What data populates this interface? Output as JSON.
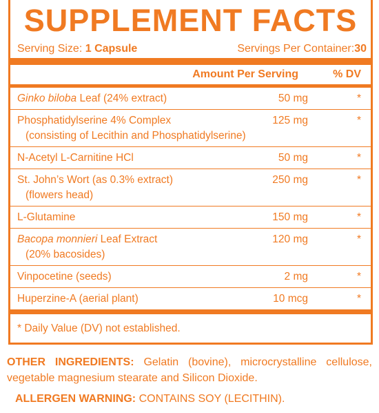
{
  "header": {
    "title": "SUPPLEMENT FACTS"
  },
  "serving": {
    "size_label": "Serving Size:",
    "size_value": "1 Capsule",
    "per_container_label": "Servings Per Container:",
    "per_container_value": "30"
  },
  "table": {
    "columns": [
      "Amount Per Serving",
      "% DV"
    ],
    "rows": [
      {
        "name_italic": "Ginko biloba",
        "name": "Leaf (24% extract)",
        "amount": "50 mg",
        "dv": "*"
      },
      {
        "name": "Phosphatidylserine 4% Complex",
        "note": "(consisting of Lecithin and Phosphatidylserine)",
        "amount": "125 mg",
        "dv": "*"
      },
      {
        "name": "N-Acetyl L-Carnitine HCl",
        "amount": "50 mg",
        "dv": "*"
      },
      {
        "name": "St. John’s Wort (as 0.3% extract)",
        "note": "(flowers head)",
        "amount": "250 mg",
        "dv": "*"
      },
      {
        "name": "L-Glutamine",
        "amount": "150 mg",
        "dv": "*"
      },
      {
        "name_italic": "Bacopa monnieri",
        "name": "Leaf Extract",
        "note": "(20% bacosides)",
        "amount": "120 mg",
        "dv": "*"
      },
      {
        "name": "Vinpocetine (seeds)",
        "amount": "2 mg",
        "dv": "*"
      },
      {
        "name": "Huperzine-A (aerial plant)",
        "amount": "10 mcg",
        "dv": "*"
      }
    ],
    "footnote": "* Daily Value (DV) not established."
  },
  "other_ingredients": {
    "label": "OTHER INGREDIENTS:",
    "text": "Gelatin (bovine), microcrystalline cellulose, vegetable magnesium stearate and Silicon Dioxide."
  },
  "allergen": {
    "label": "ALLERGEN WARNING:",
    "text": "CONTAINS SOY (LECITHIN)."
  }
}
